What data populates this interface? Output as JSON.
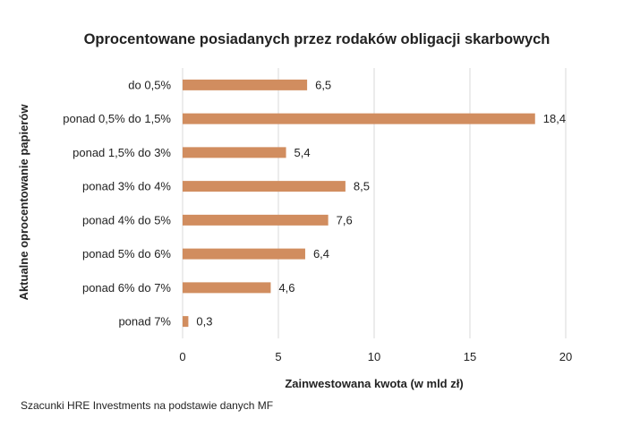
{
  "colors": {
    "bar": "#D18D5F",
    "grid": "#D9D9D9",
    "text": "#222222"
  },
  "source_note": "Szacunki HRE Investments na podstawie danych MF",
  "chart_data": {
    "type": "bar",
    "orientation": "horizontal",
    "title": "Oprocentowane posiadanych przez rodaków obligacji skarbowych",
    "xlabel": "Zainwestowana kwota (w mld zł)",
    "ylabel": "Aktualne oprocentowanie papierów",
    "categories": [
      "do 0,5%",
      "ponad 0,5% do 1,5%",
      "ponad 1,5% do 3%",
      "ponad 3% do 4%",
      "ponad 4% do 5%",
      "ponad 5% do 6%",
      "ponad 6% do 7%",
      "ponad 7%"
    ],
    "values": [
      6.5,
      18.4,
      5.4,
      8.5,
      7.6,
      6.4,
      4.6,
      0.3
    ],
    "value_labels": [
      "6,5",
      "18,4",
      "5,4",
      "8,5",
      "7,6",
      "6,4",
      "4,6",
      "0,3"
    ],
    "xlim": [
      0,
      20
    ],
    "xticks": [
      0,
      5,
      10,
      15,
      20
    ],
    "xtick_labels": [
      "0",
      "5",
      "10",
      "15",
      "20"
    ],
    "grid": "vertical",
    "legend": "none"
  }
}
